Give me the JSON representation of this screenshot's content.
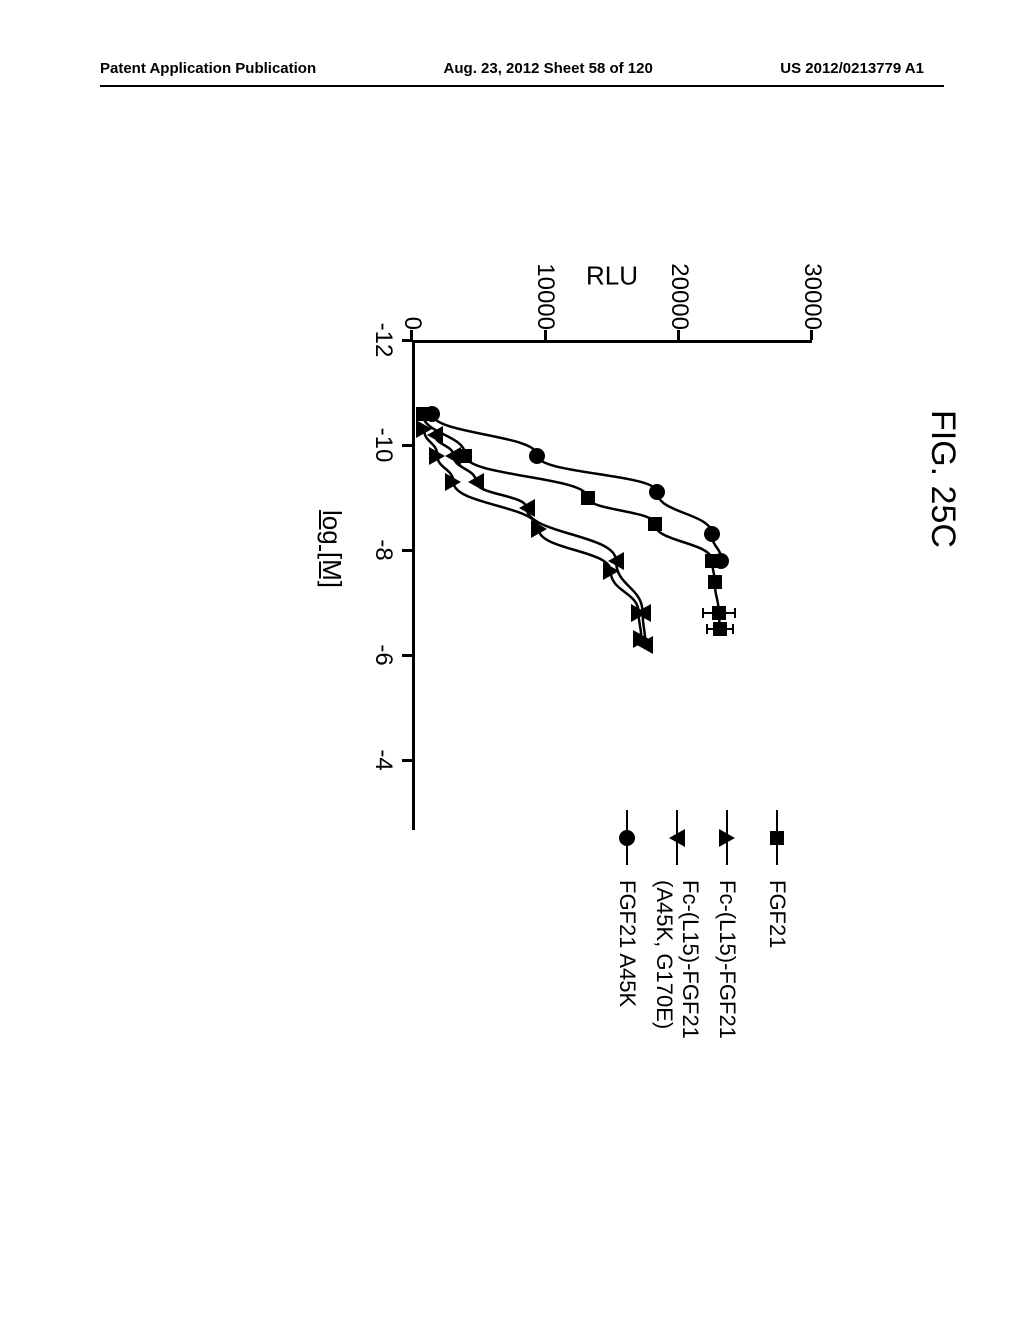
{
  "header": {
    "left": "Patent Application Publication",
    "center": "Aug. 23, 2012  Sheet 58 of 120",
    "right": "US 2012/0213779 A1"
  },
  "figure": {
    "title": "FIG. 25C",
    "type": "line",
    "y_axis": {
      "label": "RLU",
      "ticks": [
        0,
        10000,
        20000,
        30000
      ],
      "range": [
        0,
        30000
      ]
    },
    "x_axis": {
      "label": "log [M]",
      "ticks": [
        -12,
        -10,
        -8,
        -6,
        -4
      ],
      "range": [
        -12,
        -4
      ]
    },
    "colors": {
      "series": "#000000",
      "axis": "#000000",
      "background": "#ffffff"
    },
    "line_width": 2.5,
    "marker_size": 14,
    "legend": {
      "items": [
        {
          "label": "FGF21",
          "marker": "square"
        },
        {
          "label": "Fc-(L15)-FGF21",
          "marker": "triangle-up"
        },
        {
          "label": "Fc-(L15)-FGF21 (A45K, G170E)",
          "marker": "triangle-down"
        },
        {
          "label": "FGF21 A45K",
          "marker": "circle"
        }
      ]
    },
    "series": [
      {
        "name": "FGF21",
        "marker": "square",
        "points": [
          {
            "x": -10.6,
            "y": 800
          },
          {
            "x": -9.8,
            "y": 4000
          },
          {
            "x": -9.0,
            "y": 13200
          },
          {
            "x": -8.5,
            "y": 18200
          },
          {
            "x": -7.8,
            "y": 22500
          },
          {
            "x": -7.4,
            "y": 22700
          },
          {
            "x": -6.8,
            "y": 23000,
            "err": 1200
          },
          {
            "x": -6.5,
            "y": 23100,
            "err": 1000
          }
        ]
      },
      {
        "name": "Fc-(L15)-FGF21",
        "marker": "triangle-up",
        "points": [
          {
            "x": -10.3,
            "y": 900
          },
          {
            "x": -9.8,
            "y": 1900
          },
          {
            "x": -9.3,
            "y": 3100
          },
          {
            "x": -8.4,
            "y": 9500
          },
          {
            "x": -7.6,
            "y": 14900
          },
          {
            "x": -6.8,
            "y": 17000
          },
          {
            "x": -6.3,
            "y": 17200
          }
        ]
      },
      {
        "name": "Fc-(L15)-FGF21 (A45K, G170E)",
        "marker": "triangle-down",
        "points": [
          {
            "x": -10.2,
            "y": 1700
          },
          {
            "x": -9.8,
            "y": 3100
          },
          {
            "x": -9.3,
            "y": 4800
          },
          {
            "x": -8.8,
            "y": 8600
          },
          {
            "x": -7.8,
            "y": 15300
          },
          {
            "x": -6.8,
            "y": 17300
          },
          {
            "x": -6.2,
            "y": 17500
          }
        ]
      },
      {
        "name": "FGF21 A45K",
        "marker": "circle",
        "points": [
          {
            "x": -10.6,
            "y": 1500
          },
          {
            "x": -9.8,
            "y": 9400
          },
          {
            "x": -9.1,
            "y": 18400
          },
          {
            "x": -8.3,
            "y": 22500
          },
          {
            "x": -7.8,
            "y": 23200
          }
        ]
      }
    ]
  }
}
